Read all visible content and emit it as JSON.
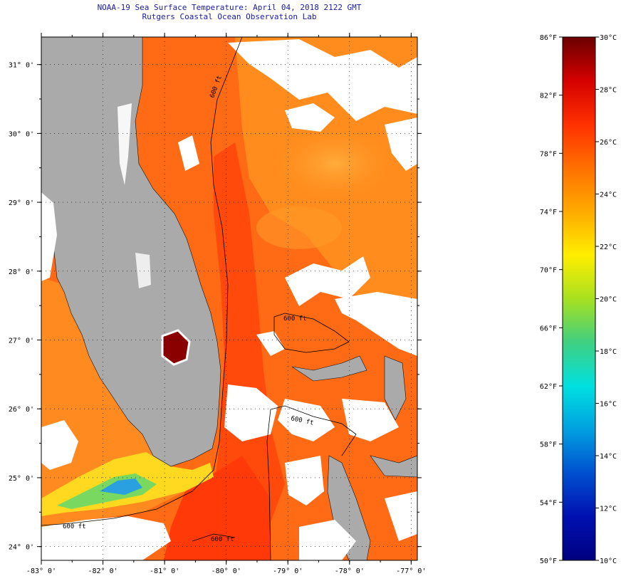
{
  "title": {
    "line1": "NOAA-19 Sea Surface Temperature:  April 04, 2018 2122 GMT",
    "line2": "Rutgers Coastal Ocean Observation Lab"
  },
  "map": {
    "lon_range": [
      -83,
      -76.9
    ],
    "lat_range": [
      23.8,
      31.4
    ],
    "lon_ticks": [
      "-83° 0'",
      "-82° 0'",
      "-81° 0'",
      "-80° 0'",
      "-79° 0'",
      "-78° 0'",
      "-77° 0'"
    ],
    "lat_ticks": [
      "31° 0'",
      "30° 0'",
      "29° 0'",
      "28° 0'",
      "27° 0'",
      "26° 0'",
      "25° 0'",
      "24° 0'"
    ],
    "contour_labels": [
      "600 ft",
      "600 ft",
      "600 ft",
      "600 ft",
      "600 ft"
    ],
    "colors": {
      "land": "#aaaaaa",
      "cloud": "#ffffff",
      "ocean_warm": "#ff5a10",
      "ocean_mid": "#ff8a18",
      "ocean_cool": "#ffa020",
      "lake": "#8a0000"
    }
  },
  "colorbar": {
    "fahrenheit": [
      "86°F",
      "82°F",
      "78°F",
      "74°F",
      "70°F",
      "66°F",
      "62°F",
      "58°F",
      "54°F",
      "50°F"
    ],
    "celsius": [
      "30°C",
      "28°C",
      "26°C",
      "24°C",
      "22°C",
      "20°C",
      "18°C",
      "16°C",
      "14°C",
      "12°C",
      "10°C"
    ],
    "f_range": [
      50,
      86
    ],
    "c_range": [
      10,
      30
    ],
    "gradient": [
      "#6b0000",
      "#d40000",
      "#ff3000",
      "#ff7000",
      "#ffaa00",
      "#ffee00",
      "#a8e020",
      "#40d080",
      "#00e0e0",
      "#00a0e0",
      "#0050d0",
      "#0010b0",
      "#000080"
    ]
  }
}
